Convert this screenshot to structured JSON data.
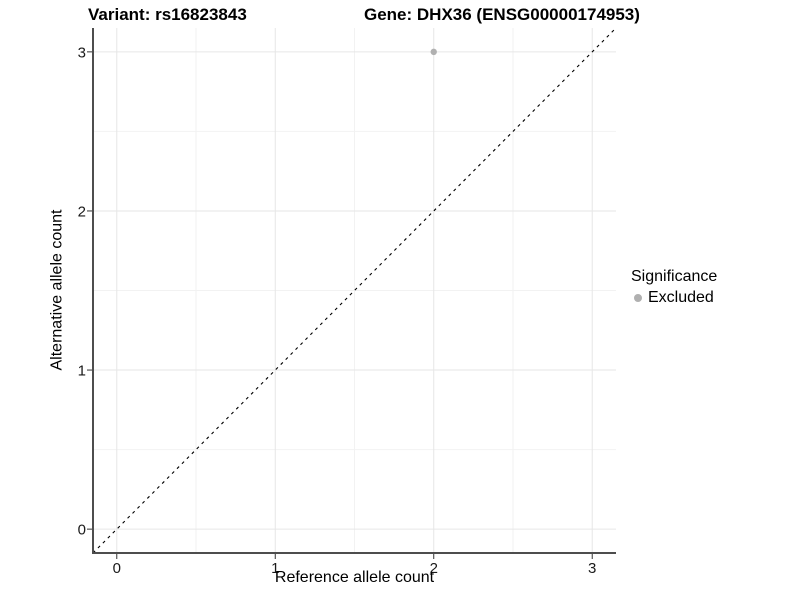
{
  "header": {
    "variant_title": "Variant: rs16823843",
    "gene_title": "Gene: DHX36 (ENSG00000174953)"
  },
  "chart_data": {
    "type": "scatter",
    "xlabel": "Reference allele count",
    "ylabel": "Alternative allele count",
    "xlim": [
      -0.15,
      3.15
    ],
    "ylim": [
      -0.15,
      3.15
    ],
    "x_ticks": [
      0,
      1,
      2,
      3
    ],
    "y_ticks": [
      0,
      1,
      2,
      3
    ],
    "x_minor_gridlines": [
      0.5,
      1.5,
      2.5
    ],
    "y_minor_gridlines": [
      0.5,
      1.5,
      2.5
    ],
    "grid": "major+minor",
    "points": [
      {
        "x": 2,
        "y": 3,
        "series": "Excluded"
      }
    ],
    "reference_line": {
      "type": "identity",
      "slope": 1,
      "intercept": 0,
      "style": "dashed"
    },
    "legend": {
      "position": "right",
      "title": "Significance",
      "items": [
        {
          "label": "Excluded",
          "color": "#b0b0b0"
        }
      ]
    },
    "colors": {
      "point": "#b0b0b0",
      "grid_major": "#e6e6e6",
      "grid_minor": "#f2f2f2",
      "axis_line": "#4d4d4d",
      "tick_mark": "#333333",
      "reference_line": "#000000",
      "text": "#000000"
    },
    "point_radius_px": 3.2
  }
}
